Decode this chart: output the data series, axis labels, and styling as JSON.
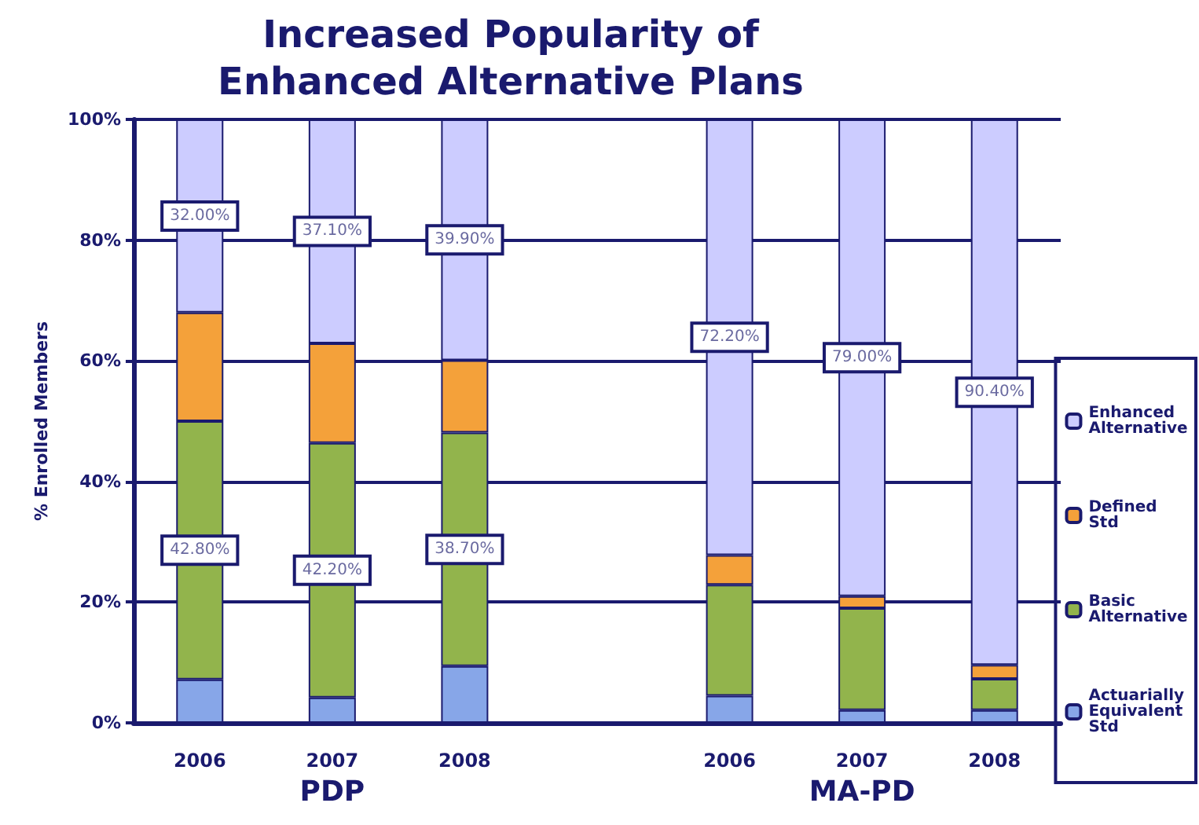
{
  "chart_data": {
    "type": "bar",
    "stacked": true,
    "title": "Increased Popularity of\nEnhanced Alternative Plans",
    "ylabel": "% Enrolled Members",
    "categories": [
      "2006",
      "2007",
      "2008",
      null,
      "2006",
      "2007",
      "2008"
    ],
    "series": [
      {
        "name": "Actuarially Equivalent Std",
        "color": "#87a6e8",
        "values": [
          7.2,
          4.2,
          9.4,
          null,
          4.5,
          2.1,
          2.1
        ]
      },
      {
        "name": "Basic Alternative",
        "color": "#92b44c",
        "values": [
          42.8,
          42.2,
          38.7,
          null,
          18.4,
          16.9,
          5.2
        ],
        "value_labels": [
          "42.80%",
          "42.20%",
          "38.70%",
          null,
          null,
          null,
          null
        ]
      },
      {
        "name": "Defined Std",
        "color": "#f4a13a",
        "values": [
          18.0,
          16.5,
          12.0,
          null,
          4.9,
          2.0,
          2.3
        ]
      },
      {
        "name": "Enhanced Alternative",
        "color": "#ccccff",
        "values": [
          32.0,
          37.1,
          39.9,
          null,
          72.2,
          79.0,
          90.4
        ],
        "value_labels": [
          "32.00%",
          "37.10%",
          "39.90%",
          null,
          "72.20%",
          "79.00%",
          "90.40%"
        ]
      }
    ],
    "annotations": [
      "PDP",
      "MA-PD"
    ],
    "ylim": [
      0,
      100
    ],
    "yticks": [
      {
        "value": 0,
        "label": "0%"
      },
      {
        "value": 20,
        "label": "20%"
      },
      {
        "value": 40,
        "label": "40%"
      },
      {
        "value": 60,
        "label": "60%"
      },
      {
        "value": 80,
        "label": "80%"
      },
      {
        "value": 100,
        "label": "100%"
      }
    ],
    "grid": "y",
    "legend": "right"
  }
}
